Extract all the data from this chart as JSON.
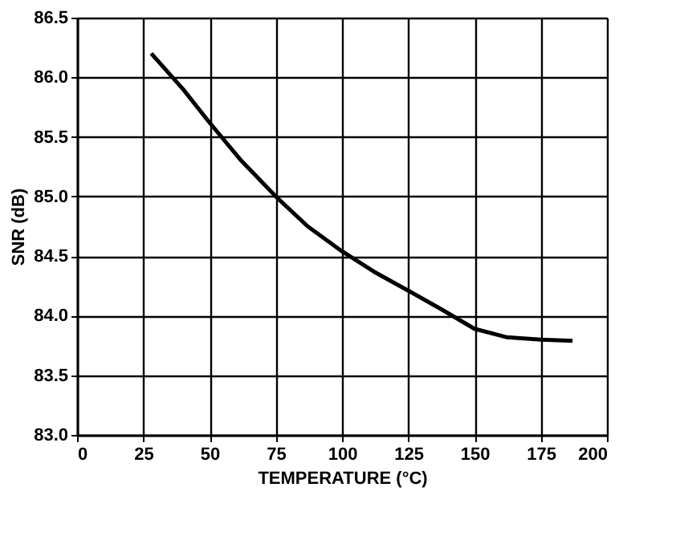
{
  "chart_data": {
    "type": "line",
    "xlabel": "TEMPERATURE (°C)",
    "ylabel": "SNR (dB)",
    "x": [
      28,
      40,
      50,
      62,
      75,
      87,
      100,
      112,
      125,
      137,
      150,
      162,
      175,
      187
    ],
    "series": [
      {
        "color": "#000000",
        "values": [
          86.2,
          85.9,
          85.62,
          85.3,
          85.0,
          84.75,
          84.54,
          84.37,
          84.21,
          84.06,
          83.89,
          83.82,
          83.8,
          83.79
        ]
      }
    ],
    "xlim": [
      0,
      200
    ],
    "xticks": [
      0,
      25,
      50,
      75,
      100,
      125,
      150,
      175,
      200
    ],
    "ylim": [
      83.0,
      86.5
    ],
    "yticks": [
      {
        "value": 83.0,
        "label": "83.0"
      },
      {
        "value": 83.5,
        "label": "83.5"
      },
      {
        "value": 84.0,
        "label": "84.0"
      },
      {
        "value": 84.5,
        "label": "84.5"
      },
      {
        "value": 85.0,
        "label": "85.0"
      },
      {
        "value": 85.5,
        "label": "85.5"
      },
      {
        "value": 86.0,
        "label": "86.0"
      },
      {
        "value": 86.5,
        "label": "86.5"
      }
    ],
    "grid": true,
    "marker": "none",
    "line_style": "solid"
  }
}
